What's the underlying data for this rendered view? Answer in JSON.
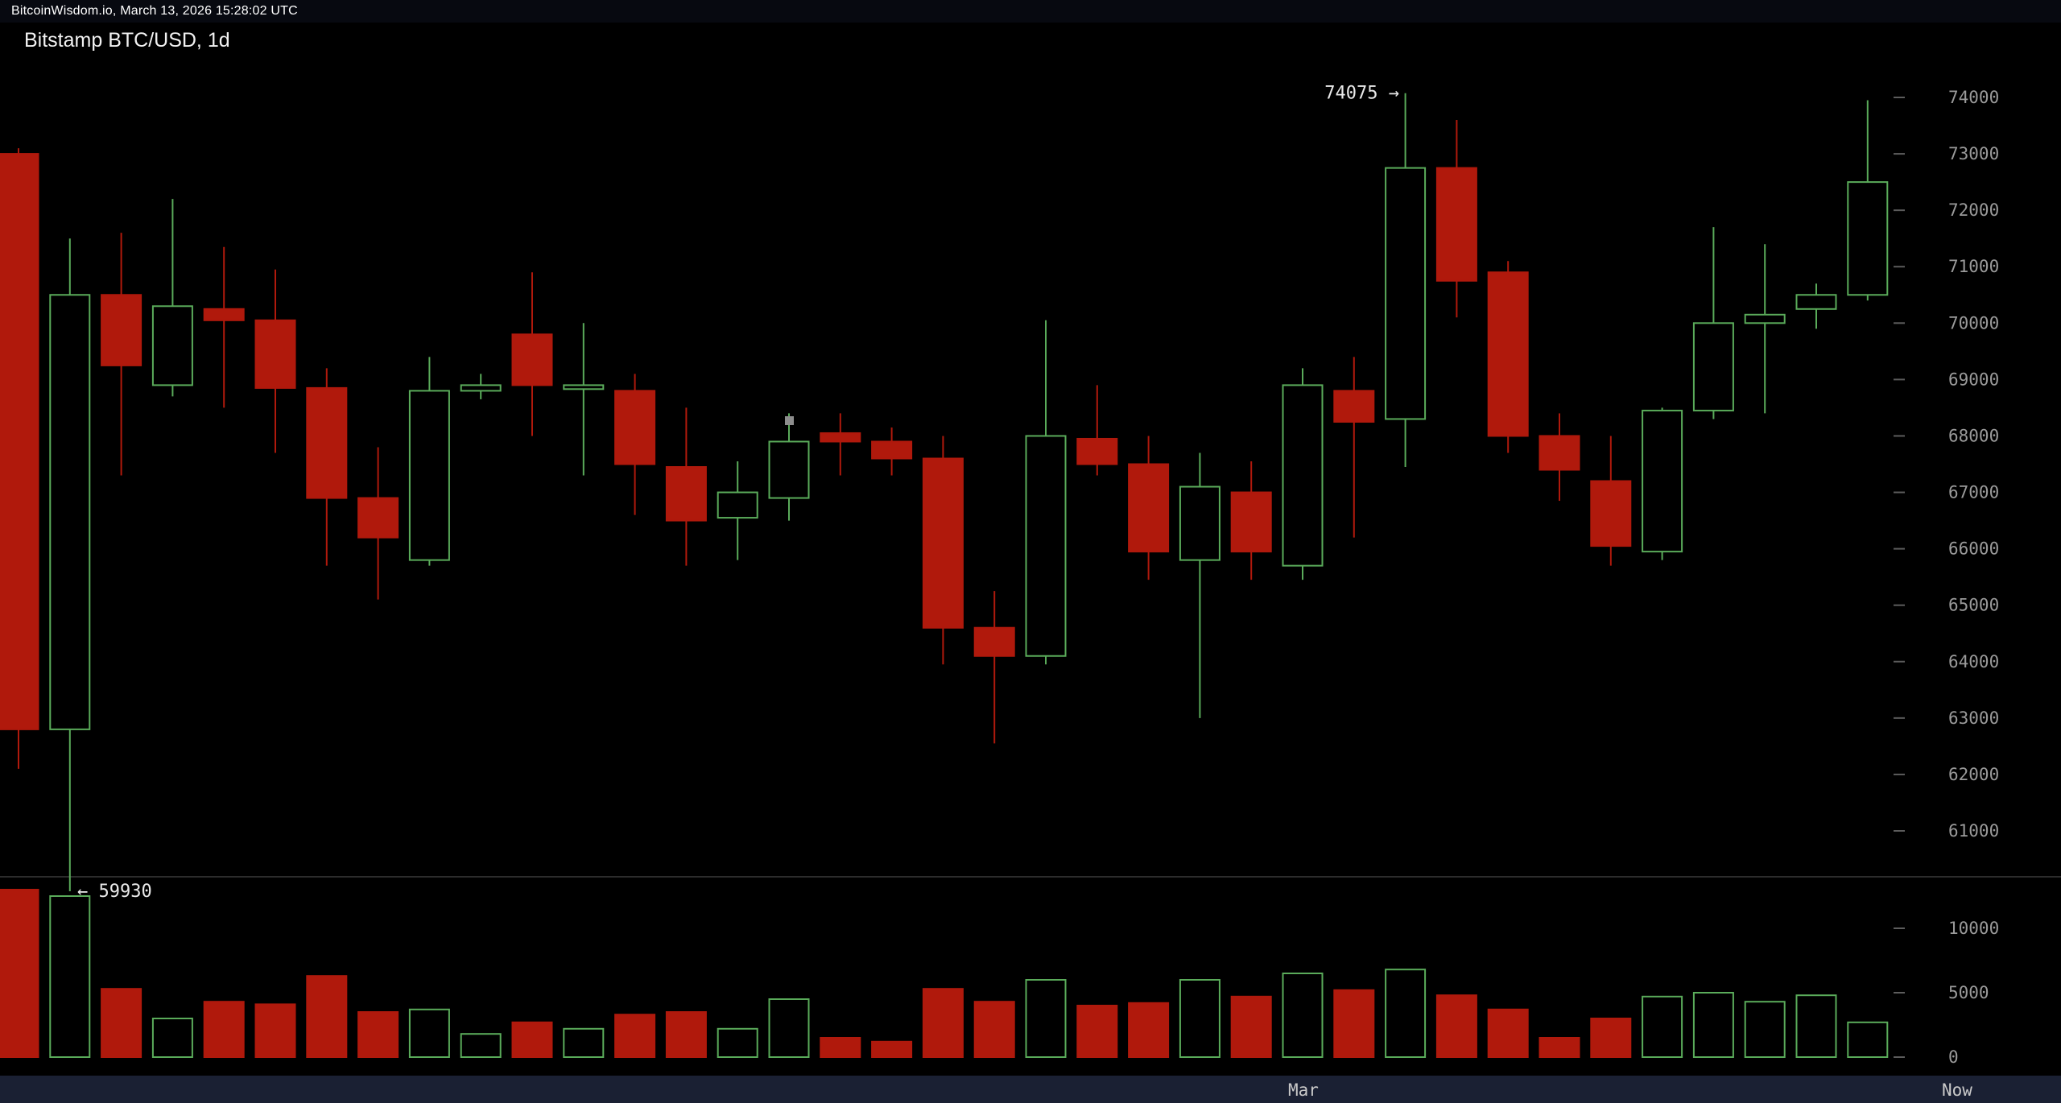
{
  "header": {
    "statusbar_text": "BitcoinWisdom.io, March 13, 2026 15:28:02 UTC"
  },
  "colors": {
    "background": "#000000",
    "up": "#5aab5a",
    "down": "#b0190c",
    "axis_text": "#9a9a9a",
    "tick": "#5c5c5c",
    "annotation_text": "#e9e9e9",
    "separator": "#3a3a3a",
    "topbar_bg": "#070910",
    "bottombar_bg": "#1a2033"
  },
  "chart_data": {
    "type": "candlestick",
    "title": "Bitstamp BTC/USD, 1d",
    "legend": "none",
    "grid": "off",
    "price_axis": {
      "side": "right",
      "ticks": [
        74000,
        73000,
        72000,
        71000,
        70000,
        69000,
        68000,
        67000,
        66000,
        65000,
        64000,
        63000,
        62000,
        61000
      ],
      "range_top": 74000,
      "range_bottom": 61000
    },
    "volume_axis": {
      "side": "right",
      "ticks": [
        10000,
        5000,
        0
      ]
    },
    "x_axis": {
      "labels": [
        "Mar",
        "Now"
      ]
    },
    "annotations": {
      "high_price": 74075,
      "high_label": "74075 →",
      "low_price": 59930,
      "low_label": "← 59930"
    },
    "ohlcv_columns": [
      "open",
      "high",
      "low",
      "close",
      "volume"
    ],
    "ohlcv": [
      [
        73000,
        73100,
        62100,
        62800,
        13000
      ],
      [
        62800,
        71500,
        59930,
        70500,
        12500
      ],
      [
        70500,
        71600,
        67300,
        69250,
        5300
      ],
      [
        68900,
        72200,
        68700,
        70300,
        3000
      ],
      [
        70250,
        71350,
        68500,
        70050,
        4300
      ],
      [
        70050,
        70950,
        67700,
        68850,
        4100
      ],
      [
        68850,
        69200,
        65700,
        66900,
        6300
      ],
      [
        66900,
        67800,
        65100,
        66200,
        3500
      ],
      [
        65800,
        69400,
        65700,
        68800,
        3700
      ],
      [
        68800,
        69100,
        68650,
        68900,
        1800
      ],
      [
        69800,
        70900,
        68000,
        68900,
        2700
      ],
      [
        68830,
        70000,
        67300,
        68900,
        2200
      ],
      [
        68800,
        69100,
        66600,
        67500,
        3300
      ],
      [
        67450,
        68500,
        65700,
        66500,
        3500
      ],
      [
        66550,
        67550,
        65800,
        67000,
        2200
      ],
      [
        66900,
        68400,
        66500,
        67900,
        4500
      ],
      [
        68050,
        68400,
        67300,
        67900,
        1500
      ],
      [
        67900,
        68150,
        67300,
        67600,
        1200
      ],
      [
        67600,
        68000,
        63950,
        64600,
        5300
      ],
      [
        64600,
        65250,
        62550,
        64100,
        4300
      ],
      [
        64100,
        70050,
        63950,
        68000,
        6000
      ],
      [
        67950,
        68900,
        67300,
        67500,
        4000
      ],
      [
        67500,
        68000,
        65450,
        65950,
        4200
      ],
      [
        65800,
        67700,
        63000,
        67100,
        6000
      ],
      [
        67000,
        67550,
        65450,
        65950,
        4700
      ],
      [
        65700,
        69200,
        65450,
        68900,
        6500
      ],
      [
        68800,
        69400,
        66200,
        68250,
        5200
      ],
      [
        68300,
        74075,
        67450,
        72750,
        6800
      ],
      [
        72750,
        73600,
        70100,
        70750,
        4800
      ],
      [
        70900,
        71100,
        67700,
        68000,
        3700
      ],
      [
        68000,
        68400,
        66850,
        67400,
        1500
      ],
      [
        67200,
        68000,
        65700,
        66050,
        3000
      ],
      [
        65950,
        68500,
        65800,
        68450,
        4700
      ],
      [
        68450,
        71700,
        68300,
        70000,
        5000
      ],
      [
        70000,
        71400,
        68400,
        70150,
        4300
      ],
      [
        70250,
        70700,
        69900,
        70500,
        4800
      ],
      [
        70500,
        73950,
        70400,
        72500,
        2700
      ]
    ]
  }
}
